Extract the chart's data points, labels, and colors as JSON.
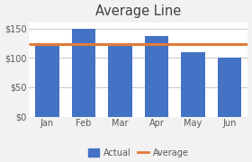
{
  "categories": [
    "Jan",
    "Feb",
    "Mar",
    "Apr",
    "May",
    "Jun"
  ],
  "values": [
    120,
    150,
    122,
    137,
    110,
    100
  ],
  "bar_color": "#4472c4",
  "avg_color": "#e07b39",
  "avg_value": 123.17,
  "title": "Average Line",
  "title_fontsize": 10.5,
  "ylim": [
    0,
    160
  ],
  "yticks": [
    0,
    50,
    100,
    150
  ],
  "ytick_labels": [
    "$0",
    "$50",
    "$100",
    "$150"
  ],
  "bg_color": "#f2f2f2",
  "plot_bg_color": "#ffffff",
  "grid_color": "#c8c8c8",
  "legend_labels": [
    "Actual",
    "Average"
  ]
}
